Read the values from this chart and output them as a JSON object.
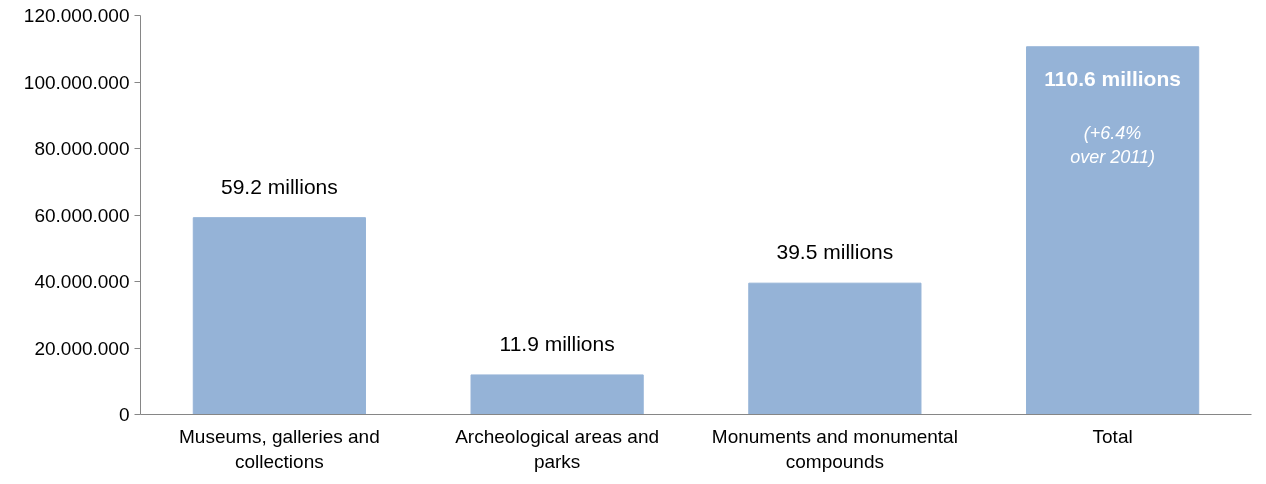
{
  "chart_data": {
    "type": "bar",
    "categories": [
      "Museums, galleries and collections",
      "Archeological areas and parks",
      "Monuments and monumental compounds",
      "Total"
    ],
    "values": [
      59200000,
      11900000,
      39500000,
      110600000
    ],
    "value_labels": [
      "59.2 millions",
      "11.9 millions",
      "39.5 millions",
      "110.6 millions"
    ],
    "color": "#95b3d7",
    "ylim": [
      0,
      120000000
    ],
    "yticks": [
      {
        "value": 0,
        "label": "0"
      },
      {
        "value": 20000000,
        "label": "20.000.000"
      },
      {
        "value": 40000000,
        "label": "40.000.000"
      },
      {
        "value": 60000000,
        "label": "60.000.000"
      },
      {
        "value": 80000000,
        "label": "80.000.000"
      },
      {
        "value": 100000000,
        "label": "100.000.000"
      },
      {
        "value": 120000000,
        "label": "120.000.000"
      }
    ],
    "annotations": [
      "(+6.4% over 2011)"
    ],
    "grid": false
  }
}
